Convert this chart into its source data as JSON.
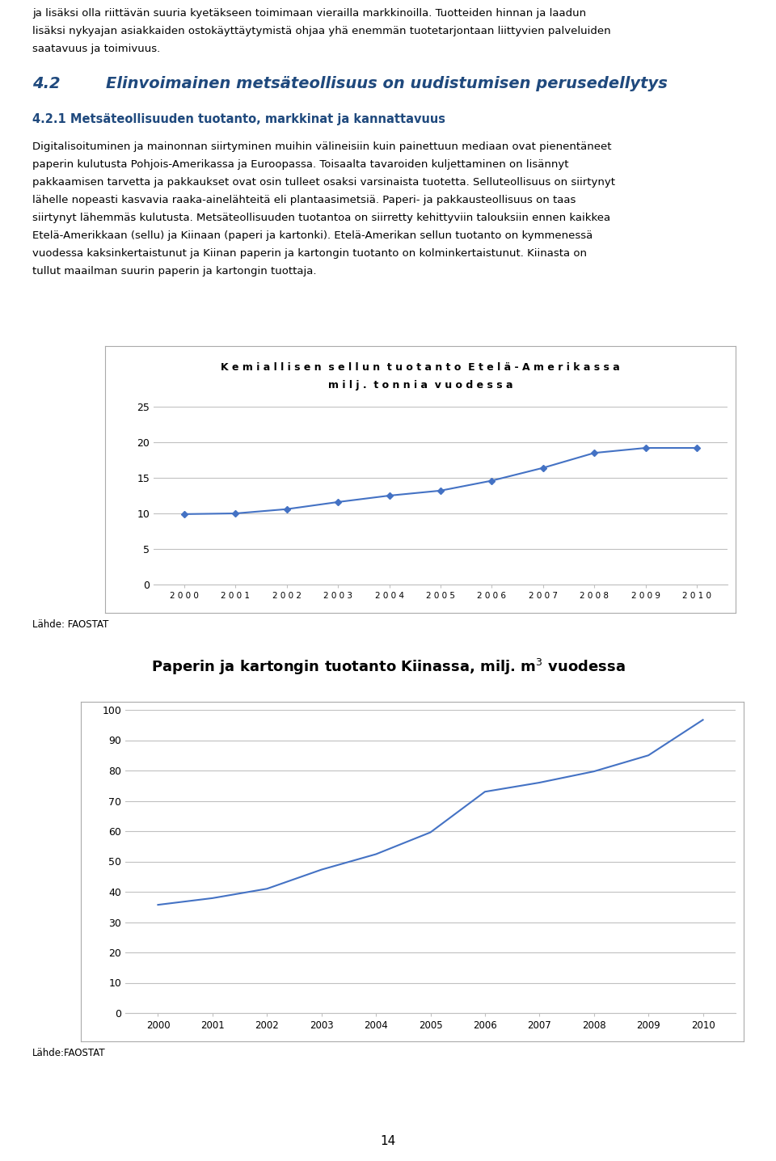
{
  "page_text_top": [
    "ja lisäksi olla riittävän suuria kyetäkseen toimimaan vierailla markkinoilla. Tuotteiden hinnan ja laadun",
    "lisäksi nykyajan asiakkaiden ostokäyttäytymistä ohjaa yhä enemmän tuotetarjontaan liittyvien palveluiden",
    "saatavuus ja toimivuus."
  ],
  "heading1": "4.2",
  "heading1_text": "Elinvoimainen metsäteollisuus on uudistumisen perusedellytys",
  "heading2": "4.2.1 Metsäteollisuuden tuotanto, markkinat ja kannattavuus",
  "body_text": [
    "Digitalisoituminen ja mainonnan siirtyminen muihin välineisiin kuin painettuun mediaan ovat pienentäneet",
    "paperin kulutusta Pohjois-Amerikassa ja Euroopassa. Toisaalta tavaroiden kuljettaminen on lisännyt",
    "pakkaamisen tarvetta ja pakkaukset ovat osin tulleet osaksi varsinaista tuotetta. Selluteollisuus on siirtynyt",
    "lähelle nopeasti kasvavia raaka-ainelähteitä eli plantaasimetsiä. Paperi- ja pakkausteollisuus on taas",
    "siirtynyt lähemmäs kulutusta. Metsäteollisuuden tuotantoa on siirretty kehittyviin talouksiin ennen kaikkea",
    "Etelä-Amerikkaan (sellu) ja Kiinaan (paperi ja kartonki). Etelä-Amerikan sellun tuotanto on kymmenessä",
    "vuodessa kaksinkertaistunut ja Kiinan paperin ja kartongin tuotanto on kolminkertaistunut. Kiinasta on",
    "tullut maailman suurin paperin ja kartongin tuottaja."
  ],
  "chart1_title_line1": "K e m i a l l i s e n  s e l l u n  t u o t a n t o  E t e l ä - A m e r i k a s s a",
  "chart1_title_line2": "m i l j .  t o n n i a  v u o d e s s a",
  "chart1_years": [
    2000,
    2001,
    2002,
    2003,
    2004,
    2005,
    2006,
    2007,
    2008,
    2009,
    2010
  ],
  "chart1_values": [
    9.9,
    10.0,
    10.6,
    11.6,
    12.5,
    13.2,
    14.6,
    16.4,
    18.5,
    19.2,
    19.2
  ],
  "chart1_ylim": [
    0,
    25
  ],
  "chart1_yticks": [
    0,
    5,
    10,
    15,
    20,
    25
  ],
  "chart1_xlabel_spaced": [
    "2 0 0 0",
    "2 0 0 1",
    "2 0 0 2",
    "2 0 0 3",
    "2 0 0 4",
    "2 0 0 5",
    "2 0 0 6",
    "2 0 0 7",
    "2 0 0 8",
    "2 0 0 9",
    "2 0 1 0"
  ],
  "chart1_source": "Lähde: FAOSTAT",
  "chart1_line_color": "#4472C4",
  "chart2_title": "Paperin ja kartongin tuotanto Kiinassa, milj. m$^{3}$ vuodessa",
  "chart2_years": [
    2000,
    2001,
    2002,
    2003,
    2004,
    2005,
    2006,
    2007,
    2008,
    2009,
    2010
  ],
  "chart2_values": [
    35.7,
    37.9,
    41.0,
    47.3,
    52.4,
    59.6,
    73.0,
    76.0,
    79.7,
    85.0,
    96.7
  ],
  "chart2_ylim": [
    0,
    100
  ],
  "chart2_yticks": [
    0,
    10,
    20,
    30,
    40,
    50,
    60,
    70,
    80,
    90,
    100
  ],
  "chart2_source": "Lähde:FAOSTAT",
  "chart2_line_color": "#4472C4",
  "page_number": "14",
  "background_color": "#ffffff",
  "text_color": "#000000",
  "heading_color": "#1F497D",
  "grid_color": "#C0C0C0",
  "box_color": "#AAAAAA"
}
